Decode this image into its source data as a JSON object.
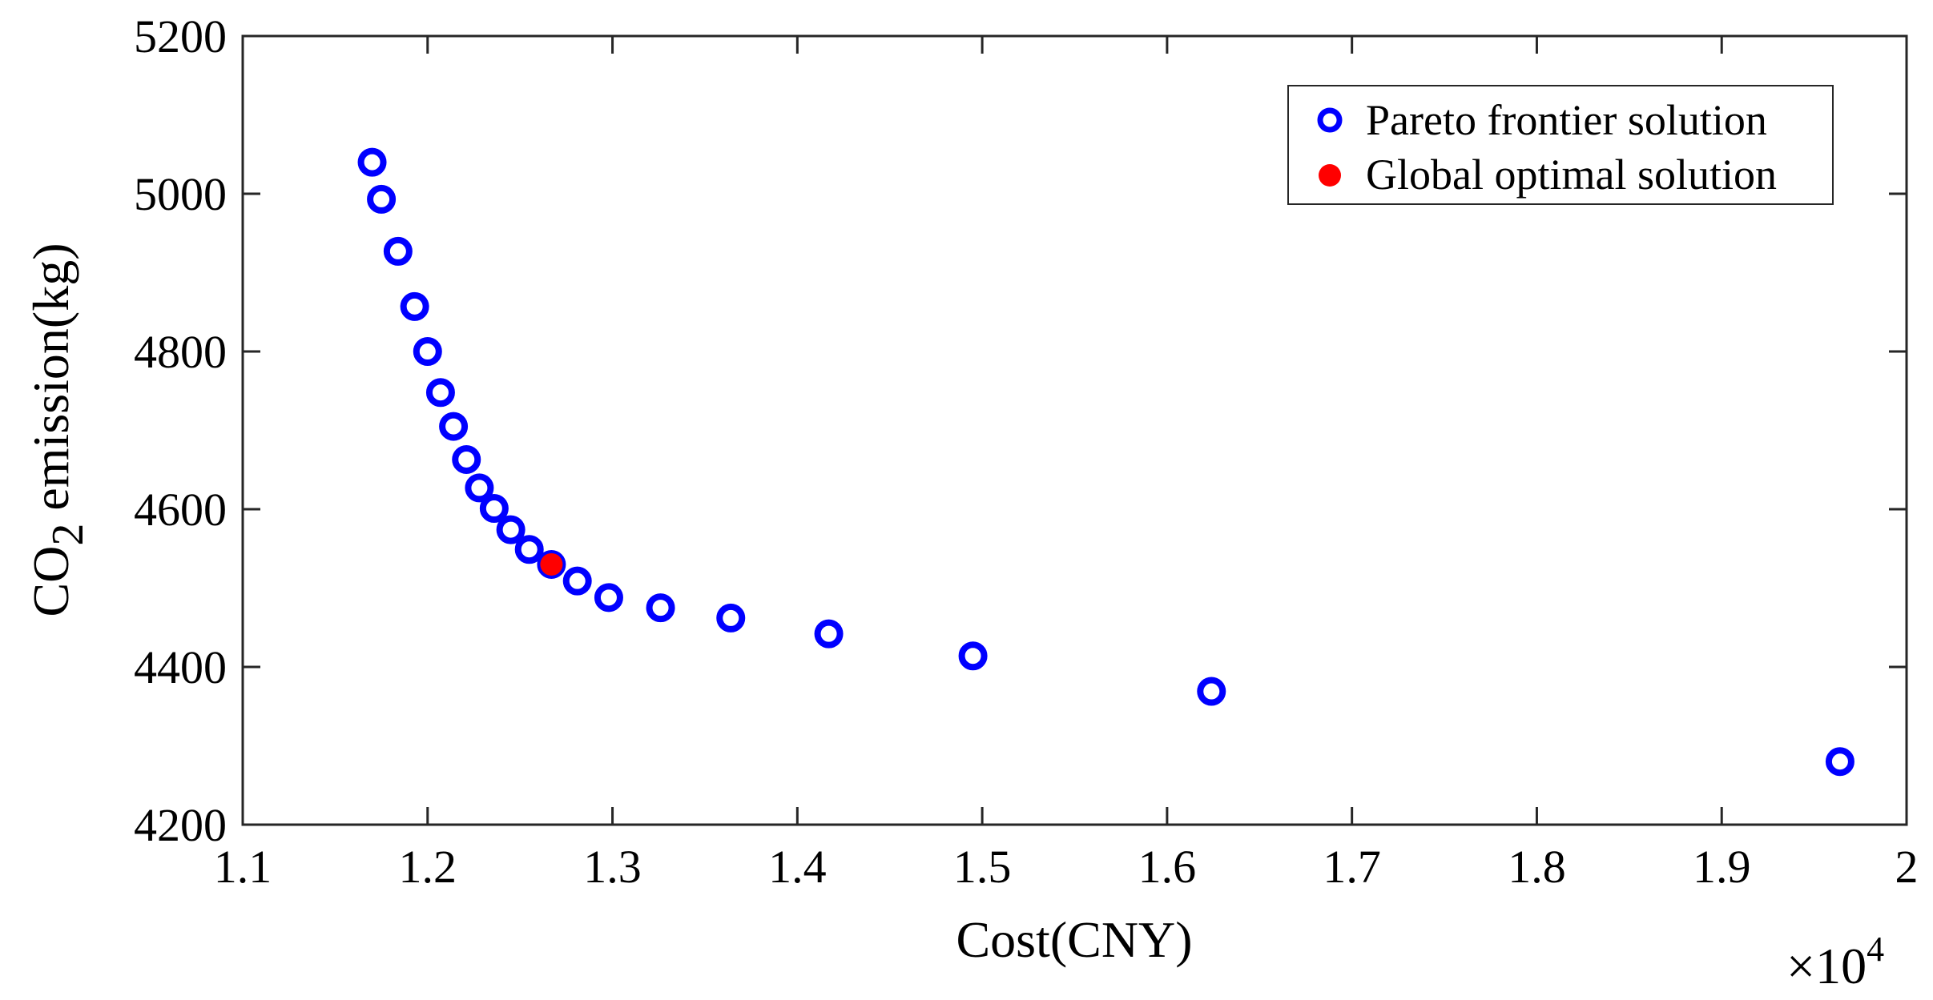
{
  "chart_data": {
    "type": "scatter",
    "xlabel": "Cost(CNY)",
    "ylabel_main": "CO",
    "ylabel_sub": "2",
    "ylabel_rest": " emission(kg)",
    "x_multiplier": "×10",
    "x_multiplier_exp": "4",
    "xlim": [
      1.1,
      2.0
    ],
    "ylim": [
      4200,
      5200
    ],
    "xticks": [
      "1.1",
      "1.2",
      "1.3",
      "1.4",
      "1.5",
      "1.6",
      "1.7",
      "1.8",
      "1.9",
      "2"
    ],
    "yticks": [
      "4200",
      "4400",
      "4600",
      "4800",
      "5000",
      "5200"
    ],
    "legend": {
      "position": "top-right",
      "pareto_label": "Pareto frontier solution",
      "optimal_label": "Global optimal solution"
    },
    "colors": {
      "pareto": "#0000ff",
      "optimal": "#ff0000"
    },
    "series": [
      {
        "name": "Pareto frontier solution",
        "marker": "circle-open",
        "points": [
          [
            1.17,
            5040
          ],
          [
            1.175,
            4993
          ],
          [
            1.184,
            4927
          ],
          [
            1.193,
            4857
          ],
          [
            1.2,
            4800
          ],
          [
            1.207,
            4748
          ],
          [
            1.214,
            4705
          ],
          [
            1.221,
            4663
          ],
          [
            1.228,
            4627
          ],
          [
            1.236,
            4601
          ],
          [
            1.245,
            4574
          ],
          [
            1.255,
            4549
          ],
          [
            1.267,
            4530
          ],
          [
            1.281,
            4509
          ],
          [
            1.298,
            4488
          ],
          [
            1.326,
            4475
          ],
          [
            1.364,
            4462
          ],
          [
            1.417,
            4442
          ],
          [
            1.495,
            4414
          ],
          [
            1.624,
            4369
          ],
          [
            1.964,
            4280
          ]
        ]
      },
      {
        "name": "Global optimal solution",
        "marker": "circle-filled",
        "points": [
          [
            1.267,
            4530
          ]
        ]
      }
    ]
  }
}
